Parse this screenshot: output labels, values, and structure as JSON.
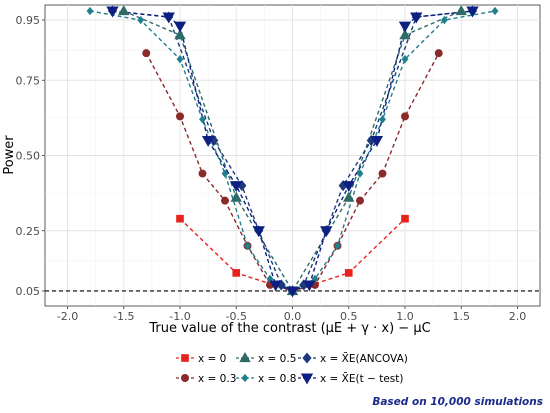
{
  "chart_data": {
    "type": "line",
    "ylabel": "Power",
    "xlabel": "True value of the contrast (μE + γ · x) − μC",
    "xlim": [
      -2.2,
      2.2
    ],
    "ylim": [
      0,
      1.0
    ],
    "x_ticks": [
      -2.0,
      -1.5,
      -1.0,
      -0.5,
      0.0,
      0.5,
      1.0,
      1.5,
      2.0
    ],
    "x_tick_labels": [
      "-2.0",
      "-1.5",
      "-1.0",
      "-0.5",
      "0.0",
      "0.5",
      "1.0",
      "1.5",
      "2.0"
    ],
    "y_ticks": [
      0.05,
      0.25,
      0.5,
      0.75,
      0.95
    ],
    "y_tick_labels": [
      "0.05",
      "0.25",
      "0.50",
      "0.75",
      "0.95"
    ],
    "reference_line": 0.05,
    "grid": true,
    "legend_position": "bottom",
    "caption": "Based on 10,000 simulations",
    "series": [
      {
        "name": "x = 0",
        "color": "#e8231e",
        "marker": "square",
        "x": [
          -1.0,
          -0.5,
          0.0,
          0.5,
          1.0
        ],
        "y": [
          0.29,
          0.11,
          0.05,
          0.11,
          0.29
        ]
      },
      {
        "name": "x = 0.3",
        "color": "#8b2a2a",
        "marker": "circle",
        "x": [
          -1.3,
          -1.0,
          -0.8,
          -0.6,
          -0.4,
          -0.2,
          0.0,
          0.2,
          0.4,
          0.6,
          0.8,
          1.0,
          1.3
        ],
        "y": [
          0.84,
          0.63,
          0.44,
          0.35,
          0.2,
          0.07,
          0.05,
          0.07,
          0.2,
          0.35,
          0.44,
          0.63,
          0.84
        ]
      },
      {
        "name": "x = 0.5",
        "color": "#2f6b66",
        "marker": "triangle",
        "x": [
          -1.5,
          -1.0,
          -0.5,
          0.0,
          0.5,
          1.0,
          1.5
        ],
        "y": [
          0.98,
          0.9,
          0.36,
          0.05,
          0.36,
          0.9,
          0.98
        ]
      },
      {
        "name": "x = 0.8",
        "color": "#1f7f8c",
        "marker": "diamond",
        "x": [
          -1.8,
          -1.35,
          -1.0,
          -0.8,
          -0.6,
          -0.4,
          -0.2,
          0.0,
          0.2,
          0.4,
          0.6,
          0.8,
          1.0,
          1.35,
          1.8
        ],
        "y": [
          0.98,
          0.95,
          0.82,
          0.62,
          0.44,
          0.2,
          0.09,
          0.05,
          0.09,
          0.2,
          0.44,
          0.62,
          0.82,
          0.95,
          0.98
        ]
      },
      {
        "name": "x = X̄E(ANCOVA)",
        "color": "#1a3a7a",
        "marker": "diamond",
        "x": [
          -1.6,
          -1.1,
          -0.7,
          -0.45,
          -0.3,
          -0.1,
          0.0,
          0.1,
          0.3,
          0.45,
          0.7,
          1.1,
          1.6
        ],
        "y": [
          0.98,
          0.96,
          0.55,
          0.4,
          0.25,
          0.07,
          0.05,
          0.07,
          0.25,
          0.4,
          0.55,
          0.96,
          0.98
        ]
      },
      {
        "name": "x = X̄E(t − test)",
        "color": "#0d1f80",
        "marker": "triangle-down",
        "x": [
          -1.6,
          -1.1,
          -1.0,
          -0.75,
          -0.5,
          -0.3,
          -0.15,
          0.0,
          0.15,
          0.3,
          0.5,
          0.75,
          1.0,
          1.1,
          1.6
        ],
        "y": [
          0.98,
          0.96,
          0.93,
          0.55,
          0.4,
          0.25,
          0.07,
          0.05,
          0.07,
          0.25,
          0.4,
          0.55,
          0.93,
          0.96,
          0.98
        ]
      }
    ]
  }
}
